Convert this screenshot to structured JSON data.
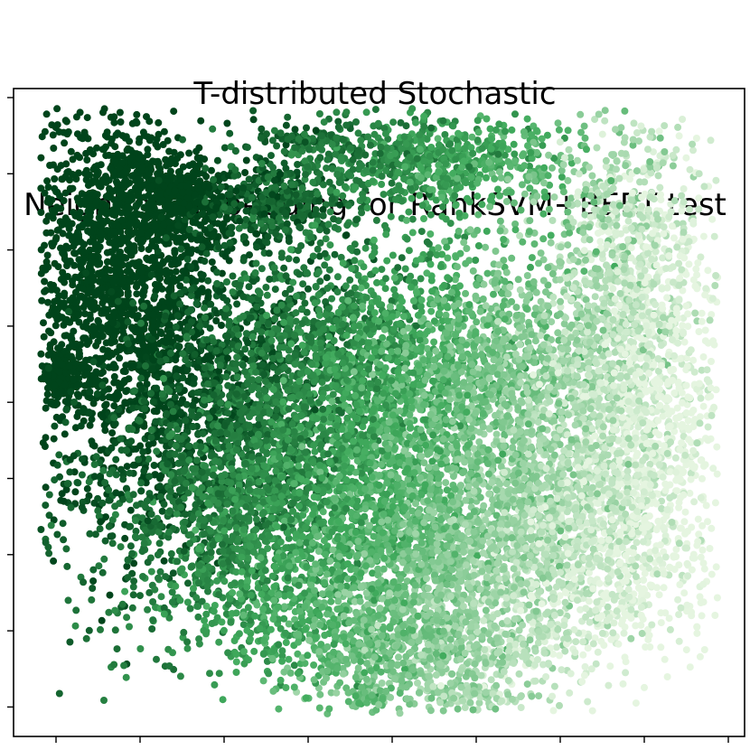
{
  "chart_data": {
    "type": "scatter",
    "title_lines": [
      "T-distributed Stochastic",
      "Neighbor Embedding for RankSVM+BERT test"
    ],
    "xlabel": "",
    "ylabel": "",
    "x_tick_count": 9,
    "y_tick_count": 9,
    "tick_labels_shown": false,
    "grid": false,
    "legend": "none",
    "colormap": "Greens",
    "color_dark": "#00441b",
    "color_mid": "#41ab5d",
    "color_light": "#e5f5e0",
    "frame_color": "#000000"
  }
}
